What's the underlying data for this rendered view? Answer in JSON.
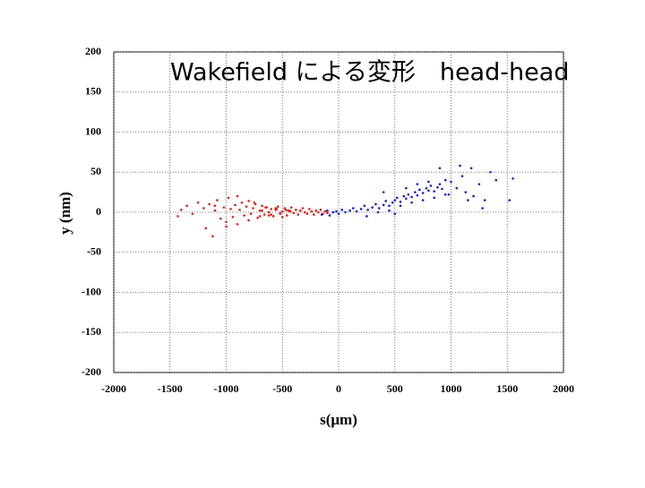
{
  "chart_data": {
    "type": "scatter",
    "title": "Wakefield による変形　head-head",
    "xlabel": "s(μm)",
    "ylabel": "y (nm)",
    "xlim": [
      -2000,
      2000
    ],
    "xticks": [
      -2000,
      -1500,
      -1000,
      -500,
      0,
      500,
      1000,
      1500,
      2000
    ],
    "ylim": [
      -200,
      200
    ],
    "yticks": [
      -200,
      -150,
      -100,
      -50,
      0,
      50,
      100,
      150,
      200
    ],
    "grid": true,
    "series": [
      {
        "color": "#e0201c",
        "x": [
          -1430,
          -1400,
          -1350,
          -1300,
          -1250,
          -1200,
          -1180,
          -1150,
          -1120,
          -1100,
          -1080,
          -1050,
          -1020,
          -1000,
          -980,
          -960,
          -940,
          -920,
          -900,
          -880,
          -860,
          -840,
          -820,
          -800,
          -780,
          -760,
          -740,
          -720,
          -700,
          -680,
          -660,
          -640,
          -620,
          -600,
          -580,
          -560,
          -540,
          -520,
          -500,
          -480,
          -460,
          -440,
          -420,
          -400,
          -380,
          -360,
          -340,
          -320,
          -300,
          -280,
          -260,
          -240,
          -220,
          -200,
          -180,
          -160,
          -140,
          -120,
          -100,
          -700,
          -650,
          -600,
          -550,
          -500,
          -450,
          -900,
          -1000,
          -1100,
          -800,
          -750,
          -680,
          -620,
          -560,
          -520,
          -470,
          -430
        ],
        "y": [
          -5,
          3,
          8,
          -2,
          12,
          5,
          -20,
          10,
          -30,
          2,
          15,
          -8,
          6,
          -12,
          18,
          4,
          -6,
          9,
          -15,
          3,
          12,
          -4,
          7,
          14,
          -2,
          5,
          10,
          -7,
          2,
          8,
          -3,
          6,
          0,
          4,
          -5,
          3,
          7,
          -2,
          1,
          5,
          -4,
          2,
          6,
          -1,
          3,
          -3,
          2,
          5,
          0,
          -2,
          4,
          1,
          -3,
          2,
          0,
          3,
          -2,
          1,
          -1,
          -5,
          6,
          -3,
          4,
          -6,
          2,
          20,
          -18,
          8,
          -10,
          12,
          2,
          -4,
          5,
          -1,
          3,
          1
        ]
      },
      {
        "color": "#1a1ad0",
        "x": [
          -150,
          -100,
          -80,
          -50,
          -20,
          0,
          30,
          60,
          100,
          130,
          160,
          200,
          230,
          260,
          300,
          330,
          360,
          400,
          420,
          450,
          480,
          500,
          520,
          550,
          580,
          600,
          620,
          650,
          680,
          700,
          720,
          750,
          780,
          800,
          820,
          850,
          880,
          900,
          920,
          950,
          980,
          1000,
          1050,
          1100,
          1130,
          1180,
          1200,
          1250,
          1300,
          1350,
          1400,
          1520,
          1550,
          350,
          450,
          550,
          650,
          750,
          850,
          950,
          250,
          400,
          600,
          700,
          900,
          1080,
          1150,
          1280,
          800,
          500
        ],
        "y": [
          -3,
          2,
          -4,
          0,
          1,
          -2,
          3,
          0,
          2,
          5,
          1,
          4,
          8,
          3,
          6,
          10,
          5,
          9,
          14,
          8,
          12,
          15,
          18,
          13,
          20,
          17,
          22,
          19,
          25,
          21,
          28,
          24,
          30,
          27,
          33,
          26,
          31,
          35,
          29,
          40,
          22,
          38,
          30,
          45,
          25,
          55,
          20,
          35,
          15,
          50,
          40,
          15,
          42,
          0,
          2,
          8,
          12,
          15,
          18,
          22,
          -5,
          25,
          30,
          35,
          55,
          58,
          15,
          5,
          38,
          -2
        ]
      }
    ]
  }
}
